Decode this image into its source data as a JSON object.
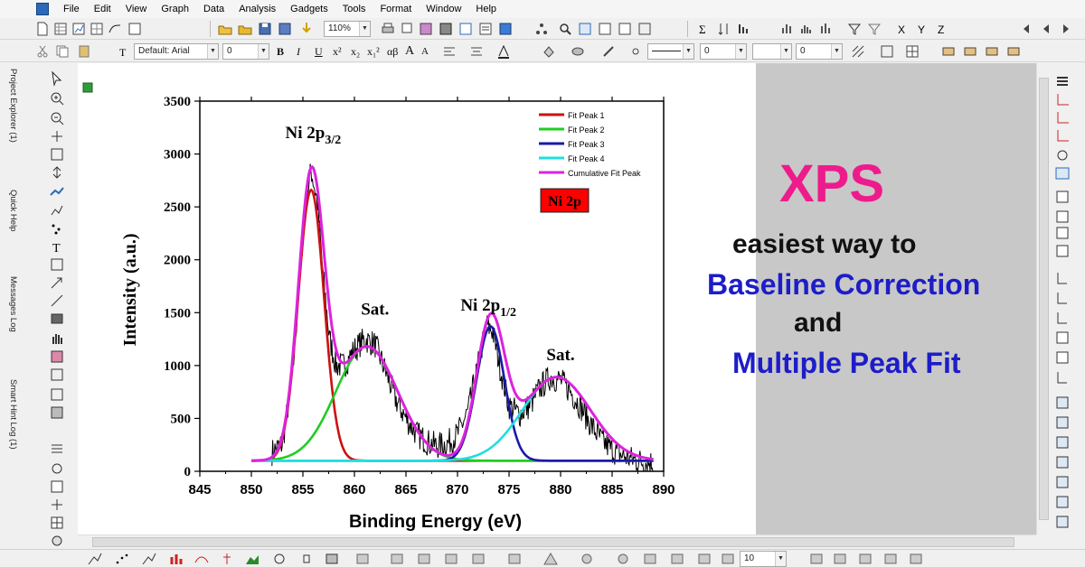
{
  "menu": {
    "items": [
      "File",
      "Edit",
      "View",
      "Graph",
      "Data",
      "Analysis",
      "Gadgets",
      "Tools",
      "Format",
      "Window",
      "Help"
    ]
  },
  "toolbar": {
    "zoom_value": "110%",
    "font_name": "Default: Arial",
    "font_size": "0",
    "format_buttons": [
      "B",
      "I",
      "U",
      "x²",
      "x₂",
      "x₁²",
      "αβ",
      "A",
      "A"
    ],
    "line_width": "0",
    "line_size_a": "0",
    "line_size_b": "0",
    "xyz_labels": [
      "X",
      "Y",
      "Z"
    ],
    "bottom_value": "10"
  },
  "left_dock": {
    "tabs": [
      "Project Explorer (1)",
      "Quick Help",
      "Messages Log",
      "Smart Hint Log (1)"
    ]
  },
  "promo": {
    "title": "XPS",
    "line1": "easiest way to",
    "line2": "Baseline Correction",
    "line3": "and",
    "line4": "Multiple Peak Fit",
    "colors": {
      "title": "#ee1b8c",
      "highlight": "#1d1dc8",
      "body": "#111111"
    }
  },
  "chart_data": {
    "type": "line",
    "xlabel": "Binding Energy (eV)",
    "ylabel": "Intensity (a.u.)",
    "xlim": [
      845,
      890
    ],
    "ylim": [
      0,
      3500
    ],
    "xticks": [
      845,
      850,
      855,
      860,
      865,
      870,
      875,
      880,
      885,
      890
    ],
    "yticks": [
      0,
      500,
      1000,
      1500,
      2000,
      2500,
      3000,
      3500
    ],
    "legend_position": "top-right",
    "sample_label": "Ni 2p",
    "annotations": [
      {
        "text": "Ni 2p",
        "sub": "3/2",
        "x": 856,
        "y": 3150
      },
      {
        "text": "Sat.",
        "sub": "",
        "x": 862,
        "y": 1480
      },
      {
        "text": "Ni 2p",
        "sub": "1/2",
        "x": 873,
        "y": 1520
      },
      {
        "text": "Sat.",
        "sub": "",
        "x": 880,
        "y": 1050
      }
    ],
    "baseline": 100,
    "peaks": [
      {
        "name": "Fit Peak 1",
        "color": "#cc1111",
        "center": 855.8,
        "height": 2560,
        "sigma": 1.25
      },
      {
        "name": "Fit Peak 2",
        "color": "#22cc22",
        "center": 861.2,
        "height": 1080,
        "sigma": 3.0
      },
      {
        "name": "Fit Peak 3",
        "color": "#1a1aa8",
        "center": 873.2,
        "height": 1270,
        "sigma": 1.35
      },
      {
        "name": "Fit Peak 4",
        "color": "#22dddd",
        "center": 879.6,
        "height": 790,
        "sigma": 3.3
      }
    ],
    "cumulative": {
      "name": "Cumulative Fit Peak",
      "color": "#dd22dd"
    },
    "raw_data_color": "#000000",
    "raw_points": [
      [
        852.0,
        180
      ],
      [
        853.0,
        260
      ],
      [
        854.0,
        900
      ],
      [
        854.6,
        1700
      ],
      [
        855.2,
        2500
      ],
      [
        855.8,
        2850
      ],
      [
        856.4,
        2550
      ],
      [
        857.0,
        1800
      ],
      [
        857.6,
        1250
      ],
      [
        858.2,
        1000
      ],
      [
        859.0,
        1000
      ],
      [
        860.0,
        1150
      ],
      [
        861.0,
        1250
      ],
      [
        862.0,
        1200
      ],
      [
        863.0,
        950
      ],
      [
        864.0,
        680
      ],
      [
        865.0,
        500
      ],
      [
        866.0,
        360
      ],
      [
        867.0,
        280
      ],
      [
        868.0,
        240
      ],
      [
        869.0,
        260
      ],
      [
        870.0,
        350
      ],
      [
        871.0,
        560
      ],
      [
        872.0,
        1000
      ],
      [
        872.8,
        1380
      ],
      [
        873.4,
        1330
      ],
      [
        874.2,
        950
      ],
      [
        875.0,
        620
      ],
      [
        876.0,
        540
      ],
      [
        877.0,
        620
      ],
      [
        878.0,
        790
      ],
      [
        879.0,
        890
      ],
      [
        880.0,
        860
      ],
      [
        881.0,
        750
      ],
      [
        882.0,
        600
      ],
      [
        883.0,
        430
      ],
      [
        884.0,
        290
      ],
      [
        885.0,
        200
      ],
      [
        886.0,
        150
      ],
      [
        887.0,
        110
      ],
      [
        888.0,
        90
      ],
      [
        889.0,
        80
      ]
    ]
  }
}
